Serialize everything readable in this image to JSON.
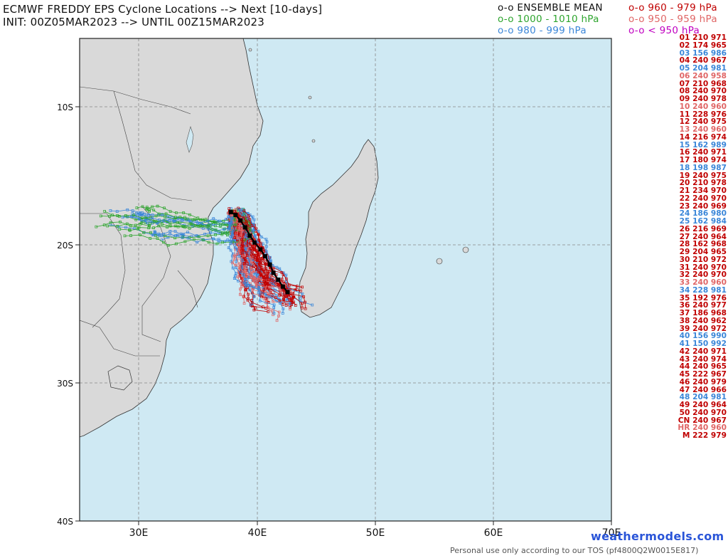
{
  "title": {
    "line1": "ECMWF FREDDY EPS Cyclone Locations --> Next [10-days]",
    "line2": "INIT: 00Z05MAR2023 --> UNTIL 00Z15MAR2023"
  },
  "legend": [
    {
      "text": "o-o ENSEMBLE MEAN",
      "color": "#111111"
    },
    {
      "text": "o-o 1000 - 1010 hPa",
      "color": "#2ea52e"
    },
    {
      "text": "o-o 980 - 999 hPa",
      "color": "#3a86d8"
    },
    {
      "text": "o-o 960 - 979 hPa",
      "color": "#c00000"
    },
    {
      "text": "o-o 950 - 959 hPa",
      "color": "#e06666"
    },
    {
      "text": "o-o < 950 hPa",
      "color": "#c000c0"
    }
  ],
  "map": {
    "lon_range": [
      25,
      70
    ],
    "lat_range": [
      -40,
      -5
    ],
    "lon_ticks": [
      "30E",
      "40E",
      "50E",
      "60E",
      "70E"
    ],
    "lat_ticks": [
      "10S",
      "20S",
      "30S",
      "40S"
    ],
    "ocean_color": "#cfe9f3",
    "land_color": "#d9d9d9",
    "grid": "dashed",
    "mean_track": [
      [
        37.8,
        -17.6
      ],
      [
        38.2,
        -17.8
      ],
      [
        38.6,
        -18.2
      ],
      [
        39.0,
        -18.7
      ],
      [
        39.4,
        -19.3
      ],
      [
        39.8,
        -19.8
      ],
      [
        40.3,
        -20.3
      ],
      [
        40.7,
        -20.8
      ],
      [
        41.1,
        -21.4
      ],
      [
        41.4,
        -22.0
      ],
      [
        41.8,
        -22.5
      ],
      [
        42.2,
        -23.0
      ],
      [
        42.6,
        -23.4
      ]
    ]
  },
  "members": [
    {
      "id": "01 210 971",
      "color": "#c00000"
    },
    {
      "id": "02 174 965",
      "color": "#c00000"
    },
    {
      "id": "03 156 986",
      "color": "#3a86d8"
    },
    {
      "id": "04 240 967",
      "color": "#c00000"
    },
    {
      "id": "05 204 981",
      "color": "#3a86d8"
    },
    {
      "id": "06 240 958",
      "color": "#e06666"
    },
    {
      "id": "07 210 968",
      "color": "#c00000"
    },
    {
      "id": "08 240 970",
      "color": "#c00000"
    },
    {
      "id": "09 240 978",
      "color": "#c00000"
    },
    {
      "id": "10 240 960",
      "color": "#e06666"
    },
    {
      "id": "11 228 976",
      "color": "#c00000"
    },
    {
      "id": "12 240 975",
      "color": "#c00000"
    },
    {
      "id": "13 240 960",
      "color": "#e06666"
    },
    {
      "id": "14 216 974",
      "color": "#c00000"
    },
    {
      "id": "15 162 989",
      "color": "#3a86d8"
    },
    {
      "id": "16 240 971",
      "color": "#c00000"
    },
    {
      "id": "17 180 974",
      "color": "#c00000"
    },
    {
      "id": "18 198 987",
      "color": "#3a86d8"
    },
    {
      "id": "19 240 975",
      "color": "#c00000"
    },
    {
      "id": "20 210 978",
      "color": "#c00000"
    },
    {
      "id": "21 234 970",
      "color": "#c00000"
    },
    {
      "id": "22 240 970",
      "color": "#c00000"
    },
    {
      "id": "23 240 969",
      "color": "#c00000"
    },
    {
      "id": "24 186 980",
      "color": "#3a86d8"
    },
    {
      "id": "25 162 984",
      "color": "#3a86d8"
    },
    {
      "id": "26 216 969",
      "color": "#c00000"
    },
    {
      "id": "27 240 964",
      "color": "#c00000"
    },
    {
      "id": "28 162 968",
      "color": "#c00000"
    },
    {
      "id": "29 204 965",
      "color": "#c00000"
    },
    {
      "id": "30 210 972",
      "color": "#c00000"
    },
    {
      "id": "31 240 970",
      "color": "#c00000"
    },
    {
      "id": "32 240 970",
      "color": "#c00000"
    },
    {
      "id": "33 240 960",
      "color": "#e06666"
    },
    {
      "id": "34 228 981",
      "color": "#3a86d8"
    },
    {
      "id": "35 192 976",
      "color": "#c00000"
    },
    {
      "id": "36 240 977",
      "color": "#c00000"
    },
    {
      "id": "37 186 968",
      "color": "#c00000"
    },
    {
      "id": "38 240 962",
      "color": "#c00000"
    },
    {
      "id": "39 240 972",
      "color": "#c00000"
    },
    {
      "id": "40 156 990",
      "color": "#3a86d8"
    },
    {
      "id": "41 150 992",
      "color": "#3a86d8"
    },
    {
      "id": "42 240 971",
      "color": "#c00000"
    },
    {
      "id": "43 240 974",
      "color": "#c00000"
    },
    {
      "id": "44 240 965",
      "color": "#c00000"
    },
    {
      "id": "45 222 967",
      "color": "#c00000"
    },
    {
      "id": "46 240 979",
      "color": "#c00000"
    },
    {
      "id": "47 240 966",
      "color": "#c00000"
    },
    {
      "id": "48 204 981",
      "color": "#3a86d8"
    },
    {
      "id": "49 240 964",
      "color": "#c00000"
    },
    {
      "id": "50 240 970",
      "color": "#c00000"
    },
    {
      "id": "CN 240 967",
      "color": "#c00000"
    },
    {
      "id": "HR 240 960",
      "color": "#e06666"
    },
    {
      "id": "M 222 979",
      "color": "#c00000"
    }
  ],
  "footer": {
    "site": "weathermodels.com",
    "tos": "Personal use only according to our TOS (pf4800Q2W0015E817)"
  }
}
